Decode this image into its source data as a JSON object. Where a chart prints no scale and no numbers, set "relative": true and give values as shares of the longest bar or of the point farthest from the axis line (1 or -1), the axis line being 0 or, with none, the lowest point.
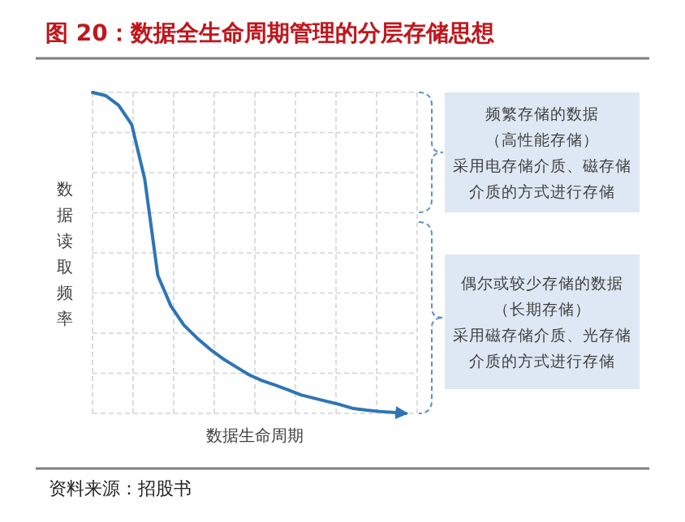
{
  "chart_data": {
    "type": "line",
    "title": "图 20：数据全生命周期管理的分层存储思想",
    "xlabel": "数据生命周期",
    "ylabel": "数据读取频率",
    "relative": true,
    "grid": true,
    "categories": [
      null,
      null,
      null,
      null,
      null,
      null,
      null,
      null,
      null,
      null,
      null,
      null,
      null,
      null,
      null,
      null,
      null,
      null,
      null,
      null,
      null,
      null,
      null,
      null,
      null
    ],
    "series": [
      {
        "color": "#2e75b6",
        "values": [
          1,
          0.99,
          0.96,
          0.9,
          0.73,
          0.43,
          0.335,
          0.275,
          0.235,
          0.2,
          0.17,
          0.145,
          0.12,
          0.102,
          0.088,
          0.073,
          0.057,
          0.047,
          0.037,
          0.027,
          0.015,
          0.01,
          0.006,
          0.003,
          0
        ]
      }
    ],
    "annotations": [
      "频繁存储的数据",
      "（高性能存储）",
      "采用电存储介质、磁存储",
      "介质的方式进行存储",
      "偶尔或较少存储的数据",
      "（长期存储）",
      "采用磁存储介质、光存储",
      "介质的方式进行存储",
      "资料来源：招股书"
    ]
  }
}
